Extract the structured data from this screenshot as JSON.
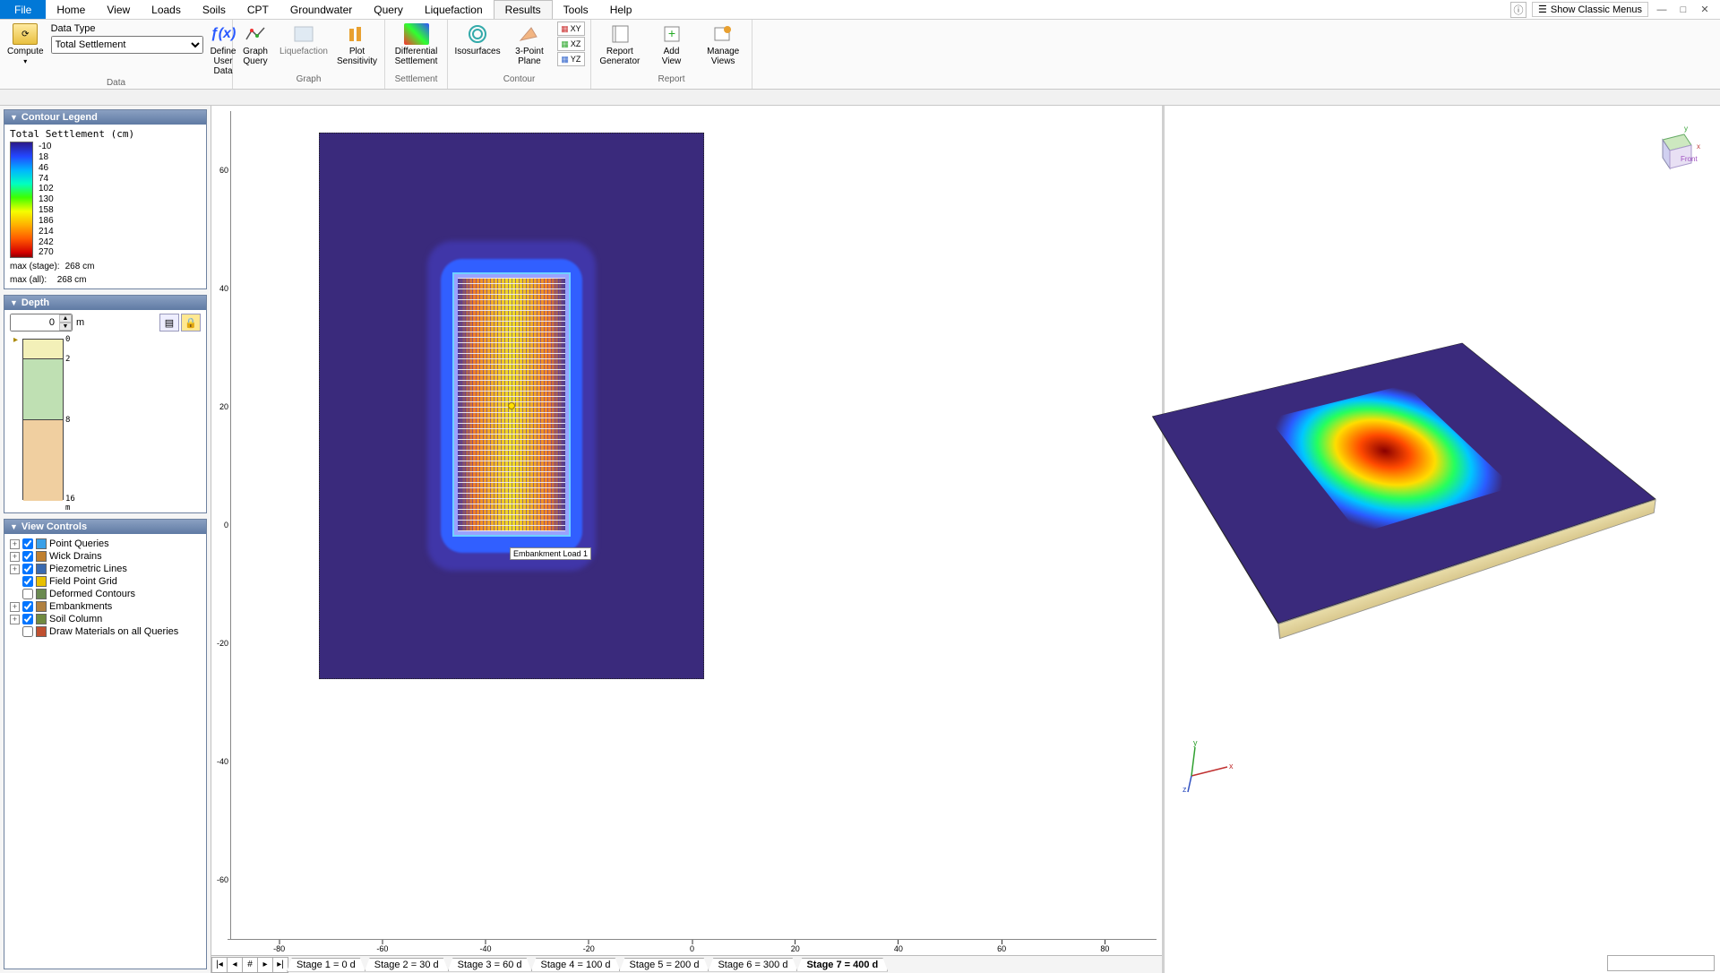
{
  "menu": {
    "items": [
      "File",
      "Home",
      "View",
      "Loads",
      "Soils",
      "CPT",
      "Groundwater",
      "Query",
      "Liquefaction",
      "Results",
      "Tools",
      "Help"
    ],
    "active": "Results",
    "show_classic": "Show Classic Menus"
  },
  "ribbon": {
    "compute": "Compute",
    "data_type_label": "Data Type",
    "data_type_value": "Total Settlement",
    "define_user_data": "Define\nUser Data",
    "graph_query": "Graph\nQuery",
    "liquefaction": "Liquefaction",
    "plot_sensitivity": "Plot\nSensitivity",
    "diff_settlement": "Differential\nSettlement",
    "isosurfaces": "Isosurfaces",
    "three_point": "3-Point\nPlane",
    "xy": "XY",
    "xz": "XZ",
    "yz": "YZ",
    "report_gen": "Report\nGenerator",
    "add_view": "Add\nView",
    "manage_views": "Manage\nViews",
    "groups": {
      "data": "Data",
      "graph": "Graph",
      "settlement": "Settlement",
      "contour": "Contour",
      "report": "Report"
    }
  },
  "legend": {
    "panel_title": "Contour Legend",
    "title": "Total Settlement (cm)",
    "ticks": [
      "-10",
      "18",
      "46",
      "74",
      "102",
      "130",
      "158",
      "186",
      "214",
      "242",
      "270"
    ],
    "max_stage_label": "max (stage):",
    "max_all_label": "max (all):  ",
    "max_stage": "268 cm",
    "max_all": "268 cm",
    "gradient_colors": [
      "#2b1a8a",
      "#2346ff",
      "#00b4ff",
      "#00ffc2",
      "#3eff00",
      "#f4ff00",
      "#ffb000",
      "#ff5a00",
      "#d40000",
      "#8a0000"
    ]
  },
  "depth": {
    "panel_title": "Depth",
    "value": "0",
    "unit": "m",
    "strata": [
      {
        "from": 0,
        "to": 2,
        "color": "#f3f0b8"
      },
      {
        "from": 2,
        "to": 8,
        "color": "#bfe0b3"
      },
      {
        "from": 8,
        "to": 16,
        "color": "#f0cfa0"
      }
    ],
    "ticks": [
      "0",
      "2",
      "8",
      "16 m"
    ]
  },
  "view_controls": {
    "panel_title": "View Controls",
    "items": [
      {
        "label": "Point Queries",
        "checked": true,
        "icon": "#3aa0e8",
        "expand": true
      },
      {
        "label": "Wick Drains",
        "checked": true,
        "icon": "#c08030",
        "expand": true
      },
      {
        "label": "Piezometric Lines",
        "checked": true,
        "icon": "#3a6ab0",
        "expand": true
      },
      {
        "label": "Field Point Grid",
        "checked": true,
        "icon": "#e8c000",
        "expand": false
      },
      {
        "label": "Deformed Contours",
        "checked": false,
        "icon": "#6a8a50",
        "expand": false
      },
      {
        "label": "Embankments",
        "checked": true,
        "icon": "#b08040",
        "expand": true
      },
      {
        "label": "Soil Column",
        "checked": true,
        "icon": "#708a40",
        "expand": true
      },
      {
        "label": "Draw Materials on all Queries",
        "checked": false,
        "icon": "#c05030",
        "expand": false
      }
    ]
  },
  "view2d": {
    "x_ticks": [
      -80,
      -60,
      -40,
      -20,
      0,
      20,
      40,
      60,
      80
    ],
    "y_ticks": [
      -60,
      -40,
      -20,
      0,
      20,
      40,
      60
    ],
    "embankment_label": "Embankment Load 1",
    "plan_bg": "#3a2a7c"
  },
  "view3d": {
    "axis_labels": {
      "x": "x",
      "y": "y",
      "z": "z",
      "front": "Front"
    }
  },
  "stages": {
    "tabs": [
      "Stage 1 = 0 d",
      "Stage 2 = 30 d",
      "Stage 3 = 60 d",
      "Stage 4 = 100 d",
      "Stage 5 = 200 d",
      "Stage 6 = 300 d",
      "Stage 7 = 400 d"
    ],
    "active_index": 6
  }
}
